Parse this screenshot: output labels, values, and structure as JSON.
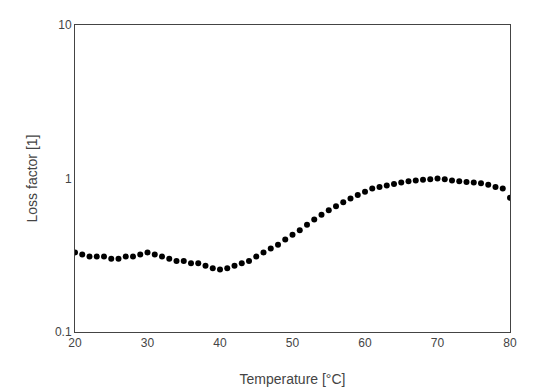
{
  "chart_data": {
    "type": "scatter",
    "x": [
      20,
      21,
      22,
      23,
      24,
      25,
      26,
      27,
      28,
      29,
      30,
      31,
      32,
      33,
      34,
      35,
      36,
      37,
      38,
      39,
      40,
      41,
      42,
      43,
      44,
      45,
      46,
      47,
      48,
      49,
      50,
      51,
      52,
      53,
      54,
      55,
      56,
      57,
      58,
      59,
      60,
      61,
      62,
      63,
      64,
      65,
      66,
      67,
      68,
      69,
      70,
      71,
      72,
      73,
      74,
      75,
      76,
      77,
      78,
      79,
      80
    ],
    "values": [
      0.33,
      0.32,
      0.31,
      0.31,
      0.31,
      0.3,
      0.3,
      0.31,
      0.31,
      0.32,
      0.33,
      0.32,
      0.31,
      0.3,
      0.29,
      0.29,
      0.28,
      0.28,
      0.27,
      0.26,
      0.255,
      0.26,
      0.27,
      0.28,
      0.29,
      0.31,
      0.33,
      0.35,
      0.37,
      0.4,
      0.43,
      0.46,
      0.5,
      0.54,
      0.58,
      0.62,
      0.66,
      0.7,
      0.74,
      0.78,
      0.82,
      0.86,
      0.88,
      0.9,
      0.92,
      0.94,
      0.96,
      0.97,
      0.98,
      0.99,
      1.0,
      0.99,
      0.97,
      0.96,
      0.95,
      0.94,
      0.93,
      0.91,
      0.88,
      0.86,
      0.75
    ],
    "color": "#000000",
    "marker": "circle",
    "xlabel": "Temperature [°C]",
    "ylabel": "Loss factor [1]",
    "xlim": [
      20,
      80
    ],
    "ylim": [
      0.1,
      10
    ],
    "xticks": [
      20,
      30,
      40,
      50,
      60,
      70,
      80
    ],
    "yticks": [
      0.1,
      1,
      10
    ],
    "log": "y",
    "grid": false
  }
}
